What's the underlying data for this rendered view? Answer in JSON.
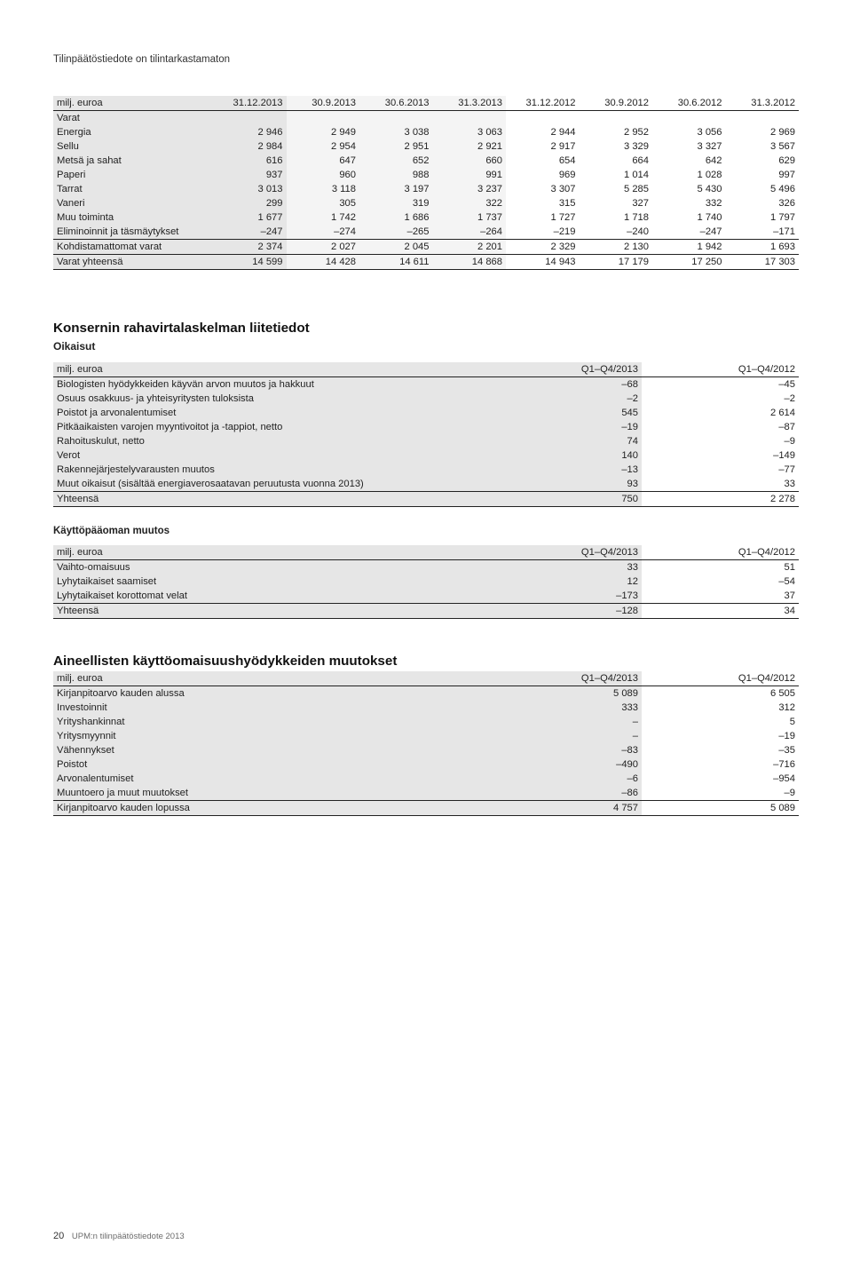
{
  "subtitle": "Tilinpäätöstiedote on tilintarkastamaton",
  "assets": {
    "unit_label": "milj. euroa",
    "columns": [
      "31.12.2013",
      "30.9.2013",
      "30.6.2013",
      "31.3.2013",
      "31.12.2012",
      "30.9.2012",
      "30.6.2012",
      "31.3.2012"
    ],
    "section_label": "Varat",
    "rows": [
      {
        "label": "Energia",
        "v": [
          "2 946",
          "2 949",
          "3 038",
          "3 063",
          "2 944",
          "2 952",
          "3 056",
          "2 969"
        ]
      },
      {
        "label": "Sellu",
        "v": [
          "2 984",
          "2 954",
          "2 951",
          "2 921",
          "2 917",
          "3 329",
          "3 327",
          "3 567"
        ]
      },
      {
        "label": "Metsä ja sahat",
        "v": [
          "616",
          "647",
          "652",
          "660",
          "654",
          "664",
          "642",
          "629"
        ]
      },
      {
        "label": "Paperi",
        "v": [
          "937",
          "960",
          "988",
          "991",
          "969",
          "1 014",
          "1 028",
          "997"
        ]
      },
      {
        "label": "Tarrat",
        "v": [
          "3 013",
          "3 118",
          "3 197",
          "3 237",
          "3 307",
          "5 285",
          "5 430",
          "5 496"
        ]
      },
      {
        "label": "Vaneri",
        "v": [
          "299",
          "305",
          "319",
          "322",
          "315",
          "327",
          "332",
          "326"
        ]
      },
      {
        "label": "Muu toiminta",
        "v": [
          "1 677",
          "1 742",
          "1 686",
          "1 737",
          "1 727",
          "1 718",
          "1 740",
          "1 797"
        ]
      },
      {
        "label": "Eliminoinnit ja täsmäytykset",
        "v": [
          "–247",
          "–274",
          "–265",
          "–264",
          "–219",
          "–240",
          "–247",
          "–171"
        ]
      }
    ],
    "subtotal": {
      "label": "Kohdistamattomat varat",
      "v": [
        "2 374",
        "2 027",
        "2 045",
        "2 201",
        "2 329",
        "2 130",
        "1 942",
        "1 693"
      ]
    },
    "total": {
      "label": "Varat yhteensä",
      "v": [
        "14 599",
        "14 428",
        "14 611",
        "14 868",
        "14 943",
        "17 179",
        "17 250",
        "17 303"
      ]
    }
  },
  "cashflow": {
    "title": "Konsernin rahavirtalaskelman liitetiedot",
    "subtitle": "Oikaisut",
    "unit_label": "milj. euroa",
    "col1": "Q1–Q4/2013",
    "col2": "Q1–Q4/2012",
    "rows": [
      {
        "label": "Biologisten hyödykkeiden käyvän arvon muutos ja hakkuut",
        "a": "–68",
        "b": "–45"
      },
      {
        "label": "Osuus osakkuus- ja yhteisyritysten tuloksista",
        "a": "–2",
        "b": "–2"
      },
      {
        "label": "Poistot ja arvonalentumiset",
        "a": "545",
        "b": "2 614"
      },
      {
        "label": "Pitkäaikaisten varojen myyntivoitot ja -tappiot, netto",
        "a": "–19",
        "b": "–87"
      },
      {
        "label": "Rahoituskulut, netto",
        "a": "74",
        "b": "–9"
      },
      {
        "label": "Verot",
        "a": "140",
        "b": "–149"
      },
      {
        "label": "Rakennejärjestelyvarausten muutos",
        "a": "–13",
        "b": "–77"
      },
      {
        "label": "Muut oikaisut (sisältää energiaverosaatavan peruutusta vuonna 2013)",
        "a": "93",
        "b": "33"
      }
    ],
    "total": {
      "label": "Yhteensä",
      "a": "750",
      "b": "2 278"
    }
  },
  "workingcap": {
    "title": "Käyttöpääoman muutos",
    "unit_label": "milj. euroa",
    "col1": "Q1–Q4/2013",
    "col2": "Q1–Q4/2012",
    "rows": [
      {
        "label": "Vaihto-omaisuus",
        "a": "33",
        "b": "51"
      },
      {
        "label": "Lyhytaikaiset saamiset",
        "a": "12",
        "b": "–54"
      },
      {
        "label": "Lyhytaikaiset korottomat velat",
        "a": "–173",
        "b": "37"
      }
    ],
    "total": {
      "label": "Yhteensä",
      "a": "–128",
      "b": "34"
    }
  },
  "ppe": {
    "title": "Aineellisten käyttöomaisuushyödykkeiden muutokset",
    "unit_label": "milj. euroa",
    "col1": "Q1–Q4/2013",
    "col2": "Q1–Q4/2012",
    "rows": [
      {
        "label": "Kirjanpitoarvo kauden alussa",
        "a": "5 089",
        "b": "6 505"
      },
      {
        "label": "Investoinnit",
        "a": "333",
        "b": "312"
      },
      {
        "label": "Yrityshankinnat",
        "a": "–",
        "b": "5"
      },
      {
        "label": "Yritysmyynnit",
        "a": "–",
        "b": "–19"
      },
      {
        "label": "Vähennykset",
        "a": "–83",
        "b": "–35"
      },
      {
        "label": "Poistot",
        "a": "–490",
        "b": "–716"
      },
      {
        "label": "Arvonalentumiset",
        "a": "–6",
        "b": "–954"
      },
      {
        "label": "Muuntoero ja muut muutokset",
        "a": "–86",
        "b": "–9"
      }
    ],
    "total": {
      "label": "Kirjanpitoarvo kauden lopussa",
      "a": "4 757",
      "b": "5 089"
    }
  },
  "footer": {
    "page": "20",
    "text": "UPM:n tilinpäätöstiedote 2013"
  }
}
